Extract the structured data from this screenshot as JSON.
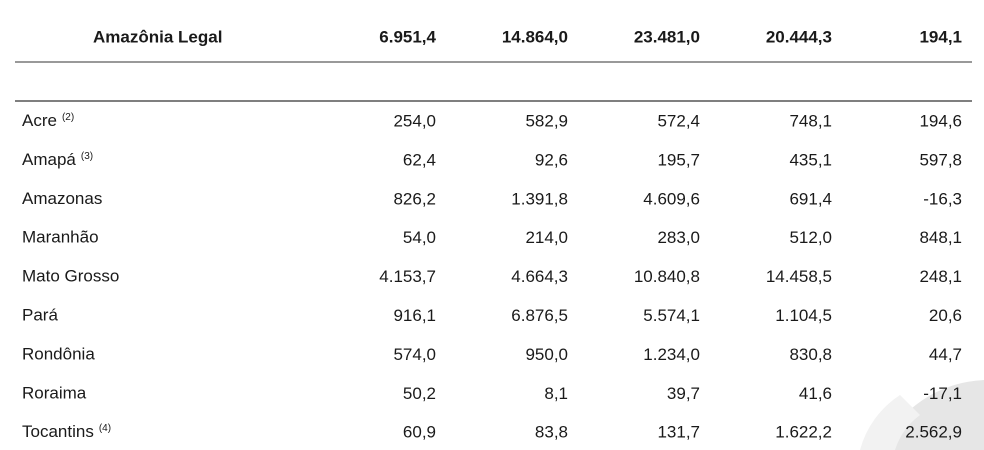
{
  "table": {
    "header": [
      "Amazônia Legal",
      "6.951,4",
      "14.864,0",
      "23.481,0",
      "20.444,3",
      "194,1"
    ],
    "rows": [
      {
        "label": "Acre",
        "note": "(2)",
        "values": [
          "254,0",
          "582,9",
          "572,4",
          "748,1",
          "194,6"
        ]
      },
      {
        "label": "Amapá",
        "note": "(3)",
        "values": [
          "62,4",
          "92,6",
          "195,7",
          "435,1",
          "597,8"
        ]
      },
      {
        "label": "Amazonas",
        "values": [
          "826,2",
          "1.391,8",
          "4.609,6",
          "691,4",
          "-16,3"
        ]
      },
      {
        "label": "Maranhão",
        "values": [
          "54,0",
          "214,0",
          "283,0",
          "512,0",
          "848,1"
        ]
      },
      {
        "label": "Mato Grosso",
        "values": [
          "4.153,7",
          "4.664,3",
          "10.840,8",
          "14.458,5",
          "248,1"
        ]
      },
      {
        "label": "Pará",
        "values": [
          "916,1",
          "6.876,5",
          "5.574,1",
          "1.104,5",
          "20,6"
        ]
      },
      {
        "label": "Rondônia",
        "values": [
          "574,0",
          "950,0",
          "1.234,0",
          "830,8",
          "44,7"
        ]
      },
      {
        "label": "Roraima",
        "values": [
          "50,2",
          "8,1",
          "39,7",
          "41,6",
          "-17,1"
        ]
      },
      {
        "label": "Tocantins",
        "note": "(4)",
        "values": [
          "60,9",
          "83,8",
          "131,7",
          "1.622,2",
          "2.562,9"
        ]
      }
    ]
  }
}
